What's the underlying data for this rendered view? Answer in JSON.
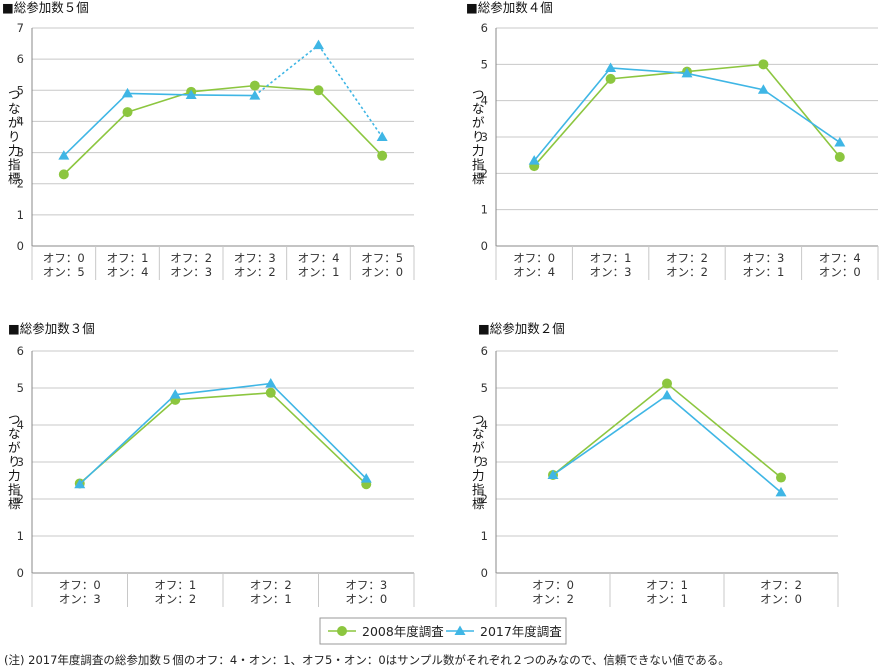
{
  "colors": {
    "survey2008": "#8cc63f",
    "survey2017": "#3fb6e5",
    "grid": "#c8c8c8",
    "axis": "#888888"
  },
  "legend": {
    "s2008": "2008年度調査",
    "s2017": "2017年度調査"
  },
  "footnote": "(注)  2017年度調査の総参加数５個のオフ：4・オン：1、オフ5・オン：0はサンプル数がそれぞれ２つのみなので、信頼できない値である。",
  "chart_data": [
    {
      "type": "line",
      "title": "■総参加数５個",
      "ylabel": "つながり力指標",
      "ylim": [
        0,
        7
      ],
      "yticks": [
        "0",
        "1",
        "2",
        "3",
        "4",
        "5",
        "6",
        "7"
      ],
      "categories": [
        [
          "オフ：0",
          "オン：5"
        ],
        [
          "オフ：1",
          "オン：4"
        ],
        [
          "オフ：2",
          "オン：3"
        ],
        [
          "オフ：3",
          "オン：2"
        ],
        [
          "オフ：4",
          "オン：1"
        ],
        [
          "オフ：5",
          "オン：0"
        ]
      ],
      "series": [
        {
          "name": "2008年度調査",
          "values": [
            2.3,
            4.3,
            4.95,
            5.15,
            5.0,
            2.9
          ]
        },
        {
          "name": "2017年度調査",
          "values": [
            2.9,
            4.9,
            4.85,
            4.83,
            6.45,
            3.5
          ],
          "dotted_from_index": 3
        }
      ]
    },
    {
      "type": "line",
      "title": "■総参加数４個",
      "ylabel": "つながり力指標",
      "ylim": [
        0,
        6
      ],
      "yticks": [
        "0",
        "1",
        "2",
        "3",
        "4",
        "5",
        "6"
      ],
      "categories": [
        [
          "オフ：0",
          "オン：4"
        ],
        [
          "オフ：1",
          "オン：3"
        ],
        [
          "オフ：2",
          "オン：2"
        ],
        [
          "オフ：3",
          "オン：1"
        ],
        [
          "オフ：4",
          "オン：0"
        ]
      ],
      "series": [
        {
          "name": "2008年度調査",
          "values": [
            2.2,
            4.6,
            4.8,
            5.0,
            2.45
          ]
        },
        {
          "name": "2017年度調査",
          "values": [
            2.35,
            4.9,
            4.75,
            4.3,
            2.85
          ]
        }
      ]
    },
    {
      "type": "line",
      "title": "■総参加数３個",
      "ylabel": "つながり力指標",
      "ylim": [
        0,
        6
      ],
      "yticks": [
        "0",
        "1",
        "2",
        "3",
        "4",
        "5",
        "6"
      ],
      "categories": [
        [
          "オフ：0",
          "オン：3"
        ],
        [
          "オフ：1",
          "オン：2"
        ],
        [
          "オフ：2",
          "オン：1"
        ],
        [
          "オフ：3",
          "オン：0"
        ]
      ],
      "series": [
        {
          "name": "2008年度調査",
          "values": [
            2.42,
            4.68,
            4.87,
            2.4
          ]
        },
        {
          "name": "2017年度調査",
          "values": [
            2.4,
            4.82,
            5.12,
            2.55
          ]
        }
      ]
    },
    {
      "type": "line",
      "title": "■総参加数２個",
      "ylabel": "つながり力指標",
      "ylim": [
        0,
        6
      ],
      "yticks": [
        "0",
        "1",
        "2",
        "3",
        "4",
        "5",
        "6"
      ],
      "categories": [
        [
          "オフ：0",
          "オン：2"
        ],
        [
          "オフ：1",
          "オン：1"
        ],
        [
          "オフ：2",
          "オン：0"
        ]
      ],
      "series": [
        {
          "name": "2008年度調査",
          "values": [
            2.65,
            5.12,
            2.58
          ]
        },
        {
          "name": "2017年度調査",
          "values": [
            2.65,
            4.8,
            2.18
          ]
        }
      ]
    }
  ]
}
